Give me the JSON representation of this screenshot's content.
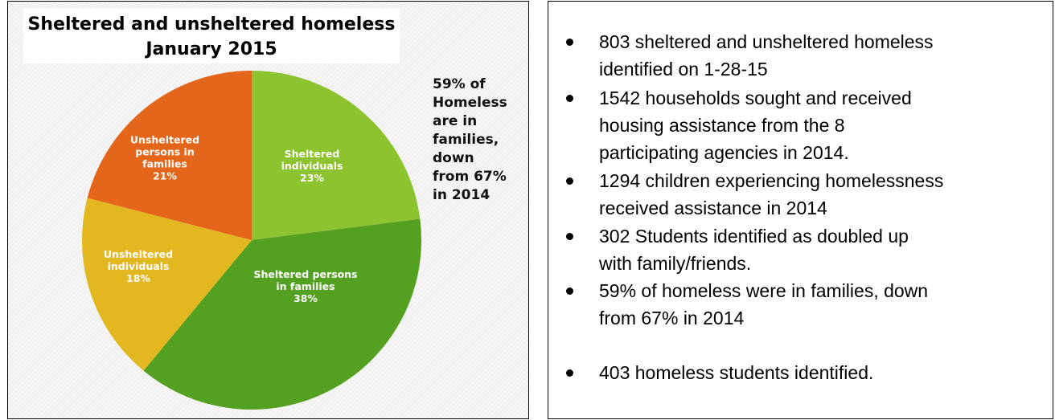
{
  "chart_data": {
    "type": "pie",
    "title": [
      "Sheltered and unsheltered homeless",
      "January 2015"
    ],
    "annotation": [
      "59% of",
      "Homeless",
      "are in",
      "families,",
      "down",
      "from 67%",
      "in 2014"
    ],
    "slices": [
      {
        "label": [
          "Sheltered",
          "individuals",
          "23%"
        ],
        "value": 23,
        "color": "#8dc32e"
      },
      {
        "label": [
          "Sheltered persons",
          "in families",
          "38%"
        ],
        "value": 38,
        "color": "#54a021"
      },
      {
        "label": [
          "Unsheltered",
          "individuals",
          "18%"
        ],
        "value": 18,
        "color": "#e3b720"
      },
      {
        "label": [
          "Unsheltered",
          "persons in",
          "families",
          "21%"
        ],
        "value": 21,
        "color": "#e4661b"
      }
    ]
  },
  "bullets": [
    [
      "803 sheltered and unsheltered homeless",
      "identified on 1-28-15"
    ],
    [
      "1542 households sought and received",
      "housing assistance from the 8",
      "participating agencies in 2014."
    ],
    [
      "1294 children experiencing homelessness",
      "received assistance in 2014"
    ],
    [
      "302 Students identified as doubled up",
      "with family/friends."
    ],
    [
      "59% of homeless were in families, down",
      "from 67% in 2014"
    ],
    [
      "403 homeless students identified."
    ]
  ]
}
